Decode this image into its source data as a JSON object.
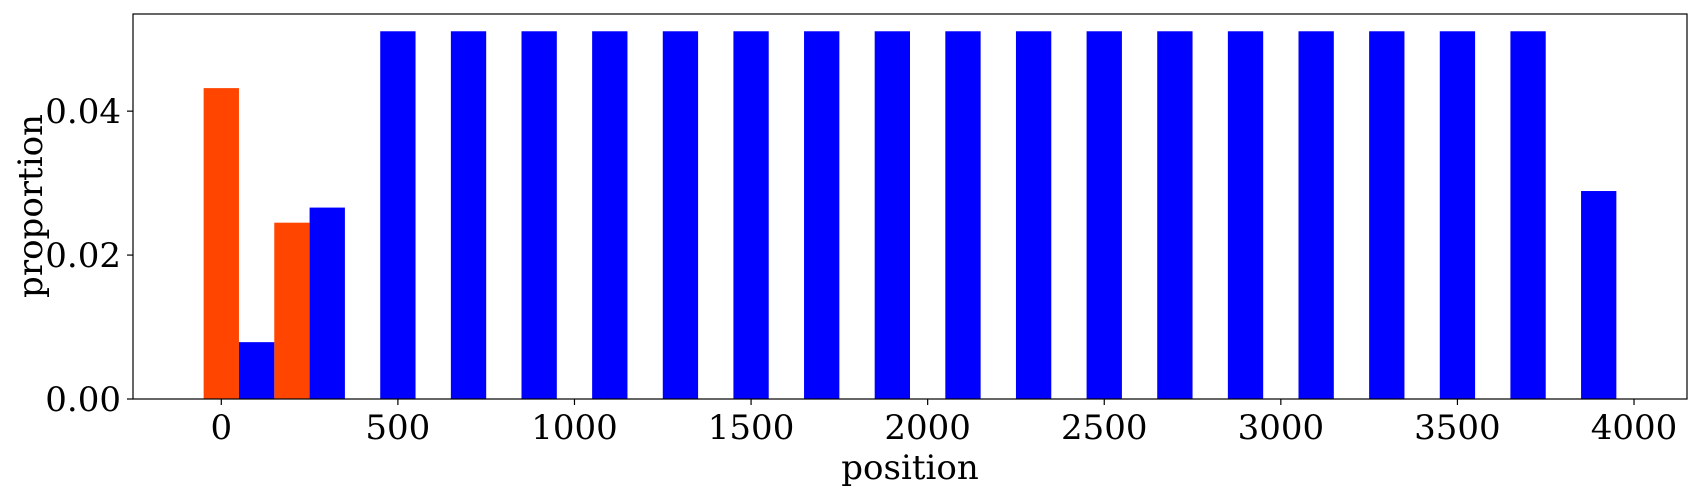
{
  "chart_data": {
    "type": "bar",
    "xlabel": "position",
    "ylabel": "proportion",
    "xlim": [
      -250,
      4150
    ],
    "ylim": [
      0,
      0.0535
    ],
    "xticks": [
      0,
      500,
      1000,
      1500,
      2000,
      2500,
      3000,
      3500,
      4000
    ],
    "xtick_labels": [
      "0",
      "500",
      "1000",
      "1500",
      "2000",
      "2500",
      "3000",
      "3500",
      "4000"
    ],
    "yticks": [
      0,
      0.02,
      0.04
    ],
    "ytick_labels": [
      "0.00",
      "0.02",
      "0.04"
    ],
    "grid": false,
    "bar_width": 100,
    "series": [
      {
        "color": "#ff4500",
        "bars": [
          {
            "x": 0,
            "value": 0.0432
          },
          {
            "x": 200,
            "value": 0.0245
          }
        ]
      },
      {
        "color": "#0000ff",
        "bars": [
          {
            "x": 100,
            "value": 0.0079
          },
          {
            "x": 300,
            "value": 0.0266
          },
          {
            "x": 500,
            "value": 0.0511
          },
          {
            "x": 700,
            "value": 0.0511
          },
          {
            "x": 900,
            "value": 0.0511
          },
          {
            "x": 1100,
            "value": 0.0511
          },
          {
            "x": 1300,
            "value": 0.0511
          },
          {
            "x": 1500,
            "value": 0.0511
          },
          {
            "x": 1700,
            "value": 0.0511
          },
          {
            "x": 1900,
            "value": 0.0511
          },
          {
            "x": 2100,
            "value": 0.0511
          },
          {
            "x": 2300,
            "value": 0.0511
          },
          {
            "x": 2500,
            "value": 0.0511
          },
          {
            "x": 2700,
            "value": 0.0511
          },
          {
            "x": 2900,
            "value": 0.0511
          },
          {
            "x": 3100,
            "value": 0.0511
          },
          {
            "x": 3300,
            "value": 0.0511
          },
          {
            "x": 3500,
            "value": 0.0511
          },
          {
            "x": 3700,
            "value": 0.0511
          },
          {
            "x": 3900,
            "value": 0.0289
          }
        ]
      }
    ]
  }
}
